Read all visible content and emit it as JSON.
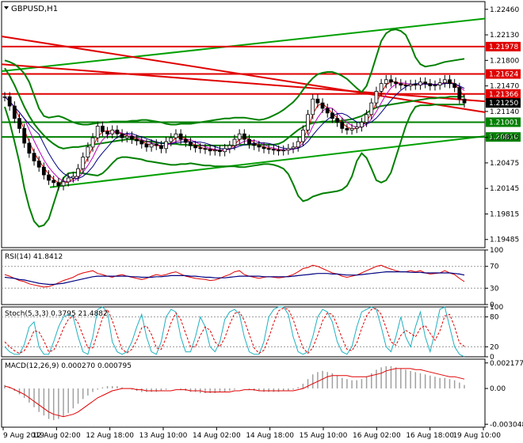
{
  "chart_data": {
    "type": "line",
    "main": {
      "title": "GBPUSD,H1",
      "ylim": [
        1.1938,
        1.2256
      ],
      "y_ticks": [
        "1.22460",
        "1.22130",
        "1.21800",
        "1.21470",
        "1.21140",
        "1.20805",
        "1.20475",
        "1.20145",
        "1.19815",
        "1.19485"
      ],
      "current_price": "1.21250",
      "levels": [
        {
          "label": "1.21978",
          "value": 1.21978
        },
        {
          "label": "1.21624",
          "value": 1.21624
        },
        {
          "label": "1.21366",
          "value": 1.21366
        },
        {
          "label": "1.21001",
          "value": 1.21001
        },
        {
          "label": "1.20810",
          "value": 1.2081
        }
      ],
      "trend_lines": [
        {
          "color": "#00a000",
          "x": [
            0,
            1
          ],
          "y": [
            1.2166,
            1.2234
          ]
        },
        {
          "color": "#00a000",
          "x": [
            0.1,
            1
          ],
          "y": [
            1.2016,
            1.2082
          ]
        },
        {
          "color": "#e00000",
          "x": [
            0,
            1
          ],
          "y": [
            1.2211,
            1.2113
          ]
        },
        {
          "color": "#e00000",
          "x": [
            0,
            1
          ],
          "y": [
            1.2175,
            1.2127
          ]
        }
      ],
      "close": [
        1.2133,
        1.2121,
        1.2105,
        1.2092,
        1.2073,
        1.206,
        1.205,
        1.2042,
        1.2032,
        1.2025,
        1.2022,
        1.2018,
        1.2023,
        1.2028,
        1.203,
        1.204,
        1.2055,
        1.2068,
        1.208,
        1.2095,
        1.2088,
        1.2085,
        1.209,
        1.2085,
        1.208,
        1.2082,
        1.2078,
        1.2076,
        1.2072,
        1.2068,
        1.2072,
        1.207,
        1.2066,
        1.2075,
        1.208,
        1.2085,
        1.2078,
        1.2074,
        1.207,
        1.2067,
        1.2066,
        1.2065,
        1.2063,
        1.2064,
        1.2062,
        1.2066,
        1.207,
        1.2078,
        1.2085,
        1.2078,
        1.2072,
        1.207,
        1.2068,
        1.2066,
        1.2065,
        1.2064,
        1.2063,
        1.2064,
        1.2066,
        1.2068,
        1.2075,
        1.209,
        1.211,
        1.213,
        1.2125,
        1.2118,
        1.2112,
        1.2105,
        1.21,
        1.2092,
        1.209,
        1.2092,
        1.2094,
        1.21,
        1.211,
        1.2125,
        1.214,
        1.215,
        1.2155,
        1.2152,
        1.215,
        1.2148,
        1.2147,
        1.2149,
        1.2148,
        1.2152,
        1.215,
        1.2147,
        1.2148,
        1.2151,
        1.2155,
        1.215,
        1.2145,
        1.213,
        1.2125
      ],
      "bb_upper": [
        1.218,
        1.2178,
        1.2175,
        1.217,
        1.2163,
        1.2152,
        1.2135,
        1.2118,
        1.2108,
        1.2106,
        1.2107,
        1.2108,
        1.2106,
        1.2103,
        1.21,
        1.2098,
        1.2097,
        1.2097,
        1.2098,
        1.2099,
        1.21,
        1.21,
        1.2101,
        1.2101,
        1.2101,
        1.2101,
        1.2102,
        1.2102,
        1.2103,
        1.2103,
        1.2102,
        1.2101,
        1.21,
        1.2098,
        1.2097,
        1.2097,
        1.2098,
        1.2098,
        1.2098,
        1.2099,
        1.21,
        1.2101,
        1.2102,
        1.2103,
        1.2104,
        1.2105,
        1.2105,
        1.2106,
        1.2106,
        1.2106,
        1.2105,
        1.2104,
        1.2103,
        1.2104,
        1.2106,
        1.2109,
        1.2112,
        1.2116,
        1.2121,
        1.2126,
        1.2133,
        1.2142,
        1.215,
        1.2157,
        1.2162,
        1.2164,
        1.2165,
        1.2165,
        1.2163,
        1.216,
        1.2156,
        1.215,
        1.2144,
        1.2139,
        1.2147,
        1.2165,
        1.2185,
        1.2205,
        1.2215,
        1.2219,
        1.222,
        1.2218,
        1.2213,
        1.22,
        1.2184,
        1.2175,
        1.2172,
        1.2173,
        1.2174,
        1.2176,
        1.2178,
        1.2179,
        1.218,
        1.2181,
        1.2182
      ],
      "bb_lower": [
        1.212,
        1.21,
        1.2075,
        1.2048,
        1.2015,
        1.199,
        1.1972,
        1.1965,
        1.1967,
        1.1975,
        1.1995,
        1.2015,
        1.2028,
        1.2034,
        1.2035,
        1.2035,
        1.2034,
        1.2033,
        1.2032,
        1.2031,
        1.2034,
        1.204,
        1.2047,
        1.2053,
        1.2055,
        1.2055,
        1.2054,
        1.2053,
        1.2052,
        1.205,
        1.2049,
        1.2048,
        1.2047,
        1.2046,
        1.2045,
        1.2045,
        1.2046,
        1.2046,
        1.2047,
        1.2046,
        1.2045,
        1.2044,
        1.2044,
        1.2043,
        1.2043,
        1.2043,
        1.2043,
        1.2043,
        1.2042,
        1.2042,
        1.2043,
        1.2044,
        1.2045,
        1.2046,
        1.2046,
        1.2045,
        1.2043,
        1.204,
        1.2033,
        1.202,
        1.2005,
        1.1998,
        1.2,
        1.2004,
        1.2006,
        1.2008,
        1.2009,
        1.201,
        1.2011,
        1.2013,
        1.2018,
        1.203,
        1.205,
        1.206,
        1.2054,
        1.204,
        1.2025,
        1.2022,
        1.2025,
        1.2035,
        1.2055,
        1.2075,
        1.2095,
        1.211,
        1.212,
        1.2122,
        1.2122,
        1.2122,
        1.2123,
        1.2123,
        1.2123,
        1.2123,
        1.2123,
        1.2123,
        1.2123
      ],
      "bb_middle": [
        1.217,
        1.216,
        1.2148,
        1.2134,
        1.212,
        1.2108,
        1.2098,
        1.209,
        1.2083,
        1.2077,
        1.2072,
        1.2068,
        1.2066,
        1.2067,
        1.2068,
        1.2068,
        1.2069,
        1.207,
        1.2071,
        1.2072,
        1.2073,
        1.2074,
        1.2075,
        1.2076,
        1.2077,
        1.2078,
        1.2078,
        1.2077,
        1.2076,
        1.2075,
        1.2075,
        1.2074,
        1.2073,
        1.2073,
        1.2072,
        1.2072,
        1.2071,
        1.2071,
        1.207,
        1.207,
        1.207,
        1.207,
        1.207,
        1.207,
        1.207,
        1.207,
        1.207,
        1.207,
        1.2071,
        1.2071,
        1.2071,
        1.2071,
        1.2071,
        1.2071,
        1.2071,
        1.2071,
        1.2072,
        1.2075,
        1.208,
        1.2085,
        1.209,
        1.2094,
        1.2097,
        1.2099,
        1.21,
        1.2101,
        1.2101,
        1.2101,
        1.2102,
        1.2102,
        1.2103,
        1.2104,
        1.2106,
        1.2108,
        1.2112,
        1.2116,
        1.2119,
        1.2121,
        1.2122,
        1.2123,
        1.2124,
        1.2125,
        1.2126,
        1.2127,
        1.2128,
        1.2129,
        1.213,
        1.2131,
        1.2131,
        1.2132,
        1.2132,
        1.2133,
        1.2133,
        1.2133,
        1.2133
      ]
    },
    "rsi": {
      "title": "RSI(14) 41.8412",
      "ylim": [
        0,
        100
      ],
      "y_ticks": [
        "100",
        "70",
        "30",
        "0"
      ],
      "levels": [
        70,
        30
      ],
      "values": [
        55,
        52,
        48,
        44,
        42,
        38,
        36,
        34,
        32,
        33,
        36,
        40,
        44,
        47,
        50,
        55,
        58,
        60,
        62,
        57,
        55,
        52,
        50,
        53,
        55,
        52,
        50,
        48,
        46,
        48,
        52,
        55,
        53,
        55,
        58,
        60,
        56,
        52,
        50,
        48,
        47,
        46,
        44,
        45,
        48,
        52,
        55,
        60,
        62,
        55,
        52,
        50,
        48,
        50,
        51,
        50,
        49,
        50,
        52,
        55,
        60,
        66,
        68,
        72,
        70,
        66,
        62,
        58,
        56,
        52,
        50,
        52,
        54,
        58,
        62,
        66,
        70,
        72,
        68,
        65,
        62,
        60,
        60,
        62,
        60,
        62,
        58,
        56,
        57,
        58,
        62,
        58,
        55,
        48,
        42
      ],
      "signal": [
        50,
        49,
        48,
        46,
        45,
        43,
        41,
        39,
        38,
        37,
        37,
        38,
        39,
        41,
        43,
        45,
        47,
        49,
        51,
        52,
        52,
        52,
        52,
        52,
        52,
        52,
        51,
        51,
        50,
        50,
        50,
        51,
        51,
        52,
        53,
        53,
        53,
        53,
        52,
        52,
        51,
        50,
        50,
        49,
        49,
        49,
        50,
        51,
        52,
        52,
        52,
        52,
        52,
        51,
        51,
        51,
        51,
        51,
        51,
        52,
        53,
        54,
        55,
        56,
        57,
        57,
        57,
        56,
        56,
        55,
        54,
        54,
        54,
        55,
        56,
        57,
        58,
        59,
        60,
        60,
        60,
        60,
        60,
        59,
        59,
        59,
        58,
        58,
        58,
        58,
        58,
        58,
        57,
        56,
        54
      ]
    },
    "stoch": {
      "title": "Stoch(5,3,3) 0.3795 21.4882",
      "ylim": [
        0,
        100
      ],
      "y_ticks": [
        "100",
        "80",
        "20",
        "0"
      ],
      "levels": [
        80,
        20
      ],
      "k": [
        20,
        10,
        5,
        5,
        25,
        60,
        70,
        20,
        5,
        5,
        30,
        60,
        80,
        85,
        80,
        40,
        10,
        5,
        40,
        95,
        100,
        90,
        30,
        10,
        5,
        10,
        30,
        60,
        85,
        40,
        10,
        5,
        30,
        80,
        95,
        90,
        40,
        10,
        10,
        40,
        80,
        60,
        20,
        10,
        30,
        75,
        90,
        95,
        85,
        40,
        10,
        5,
        5,
        30,
        80,
        95,
        100,
        100,
        85,
        40,
        10,
        5,
        10,
        40,
        80,
        95,
        90,
        70,
        30,
        10,
        5,
        20,
        60,
        90,
        95,
        100,
        95,
        60,
        20,
        10,
        40,
        80,
        40,
        20,
        60,
        90,
        40,
        10,
        50,
        95,
        100,
        60,
        20,
        5,
        0
      ],
      "d": [
        30,
        20,
        12,
        7,
        12,
        30,
        52,
        50,
        32,
        10,
        13,
        32,
        57,
        75,
        82,
        68,
        43,
        18,
        18,
        47,
        78,
        95,
        73,
        43,
        15,
        8,
        15,
        33,
        58,
        62,
        45,
        18,
        15,
        38,
        68,
        88,
        75,
        47,
        20,
        20,
        43,
        60,
        53,
        30,
        20,
        38,
        65,
        87,
        90,
        73,
        45,
        18,
        7,
        13,
        38,
        68,
        92,
        98,
        95,
        75,
        45,
        18,
        7,
        18,
        43,
        72,
        88,
        85,
        63,
        37,
        15,
        12,
        28,
        57,
        82,
        95,
        97,
        85,
        58,
        30,
        23,
        43,
        53,
        47,
        40,
        57,
        63,
        47,
        33,
        52,
        82,
        85,
        60,
        28,
        21
      ]
    },
    "macd": {
      "title": "MACD(12,26,9) 0.000270 0.000795",
      "ylim": [
        -0.0033,
        0.0025
      ],
      "y_ticks": [
        "0.002177",
        "0.00",
        "-0.003048"
      ],
      "histogram": [
        0.0003,
        0.0001,
        -0.0002,
        -0.0005,
        -0.0008,
        -0.0012,
        -0.0016,
        -0.002,
        -0.0023,
        -0.0026,
        -0.0027,
        -0.0026,
        -0.0024,
        -0.0021,
        -0.0017,
        -0.0013,
        -0.0009,
        -0.0006,
        -0.0003,
        -0.0001,
        0.0001,
        0.0002,
        0.0002,
        0.0002,
        0.0001,
        0.0,
        -0.0001,
        -0.0002,
        -0.0003,
        -0.0003,
        -0.0003,
        -0.0003,
        -0.0002,
        -0.0001,
        0.0,
        0.0,
        -0.0001,
        -0.0002,
        -0.0003,
        -0.0003,
        -0.0004,
        -0.0004,
        -0.0004,
        -0.0004,
        -0.0003,
        -0.0003,
        -0.0002,
        -0.0001,
        0.0,
        0.0,
        -0.0001,
        -0.0002,
        -0.0002,
        -0.0003,
        -0.0003,
        -0.0003,
        -0.0003,
        -0.0002,
        -0.0002,
        -0.0001,
        0.0001,
        0.0004,
        0.0008,
        0.0012,
        0.0014,
        0.0015,
        0.0014,
        0.0013,
        0.0011,
        0.0009,
        0.0008,
        0.0007,
        0.0007,
        0.0008,
        0.001,
        0.0013,
        0.0016,
        0.0018,
        0.0019,
        0.0019,
        0.0018,
        0.0017,
        0.0016,
        0.0015,
        0.0014,
        0.0013,
        0.0012,
        0.0011,
        0.001,
        0.0009,
        0.0009,
        0.0008,
        0.0007,
        0.0005,
        0.0003
      ],
      "signal": [
        0.0002,
        0.0001,
        -0.0001,
        -0.0003,
        -0.0005,
        -0.0008,
        -0.0011,
        -0.0014,
        -0.0017,
        -0.002,
        -0.0022,
        -0.0023,
        -0.0024,
        -0.0023,
        -0.0022,
        -0.002,
        -0.0017,
        -0.0014,
        -0.0011,
        -0.0008,
        -0.0006,
        -0.0004,
        -0.0002,
        -0.0001,
        0.0,
        0.0,
        0.0,
        -0.0001,
        -0.0001,
        -0.0002,
        -0.0002,
        -0.0002,
        -0.0002,
        -0.0002,
        -0.0002,
        -0.0001,
        -0.0001,
        -0.0001,
        -0.0002,
        -0.0002,
        -0.0002,
        -0.0003,
        -0.0003,
        -0.0003,
        -0.0003,
        -0.0003,
        -0.0003,
        -0.0002,
        -0.0002,
        -0.0001,
        -0.0001,
        -0.0001,
        -0.0002,
        -0.0002,
        -0.0002,
        -0.0002,
        -0.0002,
        -0.0002,
        -0.0002,
        -0.0002,
        -0.0001,
        0.0,
        0.0002,
        0.0004,
        0.0006,
        0.0008,
        0.001,
        0.0011,
        0.0011,
        0.0011,
        0.0011,
        0.001,
        0.001,
        0.001,
        0.001,
        0.0011,
        0.0012,
        0.0013,
        0.0015,
        0.0016,
        0.0017,
        0.0017,
        0.0017,
        0.0017,
        0.0016,
        0.0016,
        0.0015,
        0.0014,
        0.0013,
        0.0012,
        0.0011,
        0.001,
        0.001,
        0.0009,
        0.0008
      ]
    },
    "x_labels": [
      "9 Aug 2019",
      "12 Aug 02:00",
      "12 Aug 18:00",
      "13 Aug 10:00",
      "14 Aug 02:00",
      "14 Aug 18:00",
      "15 Aug 10:00",
      "16 Aug 02:00",
      "16 Aug 18:00",
      "19 Aug 10:00"
    ]
  },
  "colors": {
    "price": "#000000",
    "bollinger": "#008000",
    "support": "#008000",
    "resistance": "#e00000",
    "ma_fast": "#e00000",
    "ma_mid": "#c000c0",
    "ma_slow": "#000080",
    "rsi": "#e00000",
    "rsi_signal": "#000080",
    "stoch_k": "#20b0c0",
    "stoch_d": "#e00000",
    "macd_hist": "#a0a0a0",
    "macd_signal": "#e00000",
    "price_tag": "#e00000"
  }
}
